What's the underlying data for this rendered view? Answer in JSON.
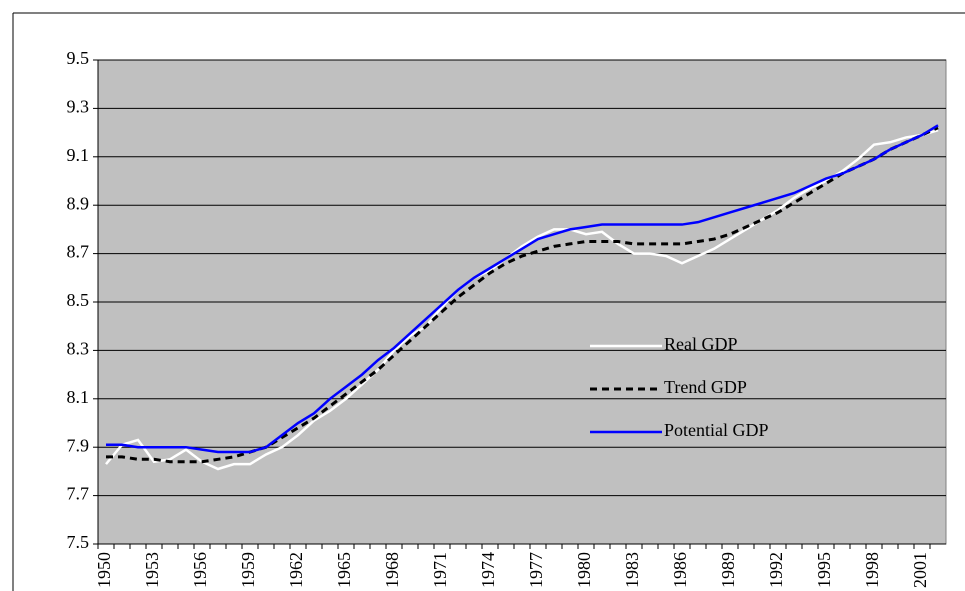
{
  "chart_data": {
    "type": "line",
    "categories": [
      "1950",
      null,
      null,
      "1953",
      null,
      null,
      "1956",
      null,
      null,
      "1959",
      null,
      null,
      "1962",
      null,
      null,
      "1965",
      null,
      null,
      "1968",
      null,
      null,
      "1971",
      null,
      null,
      "1974",
      null,
      null,
      "1977",
      null,
      null,
      "1980",
      null,
      null,
      "1983",
      null,
      null,
      "1986",
      null,
      null,
      "1989",
      null,
      null,
      "1992",
      null,
      null,
      "1995",
      null,
      null,
      "1998",
      null,
      null,
      "2001",
      null
    ],
    "series": [
      {
        "name": "Real GDP",
        "color": "#ffffff",
        "dashed": false,
        "values": [
          7.83,
          7.91,
          7.93,
          7.84,
          7.85,
          7.89,
          7.84,
          7.81,
          7.83,
          7.83,
          7.87,
          7.9,
          7.95,
          8.01,
          8.05,
          8.1,
          8.16,
          8.22,
          8.3,
          8.36,
          8.4,
          8.48,
          8.55,
          8.6,
          8.63,
          8.68,
          8.73,
          8.77,
          8.8,
          8.8,
          8.78,
          8.79,
          8.74,
          8.7,
          8.7,
          8.69,
          8.66,
          8.69,
          8.72,
          8.76,
          8.8,
          8.84,
          8.88,
          8.93,
          8.97,
          9.0,
          9.04,
          9.09,
          9.15,
          9.16,
          9.18,
          9.19,
          9.21
        ]
      },
      {
        "name": "Trend GDP",
        "color": "#000000",
        "dashed": true,
        "values": [
          7.86,
          7.86,
          7.85,
          7.85,
          7.84,
          7.84,
          7.84,
          7.85,
          7.86,
          7.88,
          7.9,
          7.94,
          7.98,
          8.02,
          8.07,
          8.12,
          8.17,
          8.22,
          8.28,
          8.34,
          8.4,
          8.46,
          8.52,
          8.57,
          8.62,
          8.66,
          8.69,
          8.71,
          8.73,
          8.74,
          8.75,
          8.75,
          8.75,
          8.74,
          8.74,
          8.74,
          8.74,
          8.75,
          8.76,
          8.78,
          8.81,
          8.84,
          8.87,
          8.91,
          8.95,
          8.99,
          9.03,
          9.06,
          9.09,
          9.13,
          9.16,
          9.19,
          9.22
        ]
      },
      {
        "name": "Potential GDP",
        "color": "#0000ff",
        "dashed": false,
        "values": [
          7.91,
          7.91,
          7.9,
          7.9,
          7.9,
          7.9,
          7.89,
          7.88,
          7.88,
          7.88,
          7.9,
          7.95,
          8.0,
          8.04,
          8.1,
          8.15,
          8.2,
          8.26,
          8.31,
          8.37,
          8.43,
          8.49,
          8.55,
          8.6,
          8.64,
          8.68,
          8.72,
          8.76,
          8.78,
          8.8,
          8.81,
          8.82,
          8.82,
          8.82,
          8.82,
          8.82,
          8.82,
          8.83,
          8.85,
          8.87,
          8.89,
          8.91,
          8.93,
          8.95,
          8.98,
          9.01,
          9.03,
          9.06,
          9.09,
          9.13,
          9.16,
          9.19,
          9.23
        ]
      }
    ],
    "ylim": [
      7.5,
      9.5
    ],
    "yticks": [
      7.5,
      7.7,
      7.9,
      8.1,
      8.3,
      8.5,
      8.7,
      8.9,
      9.1,
      9.3,
      9.5
    ],
    "grid": true,
    "background": "#c0c0c0"
  }
}
